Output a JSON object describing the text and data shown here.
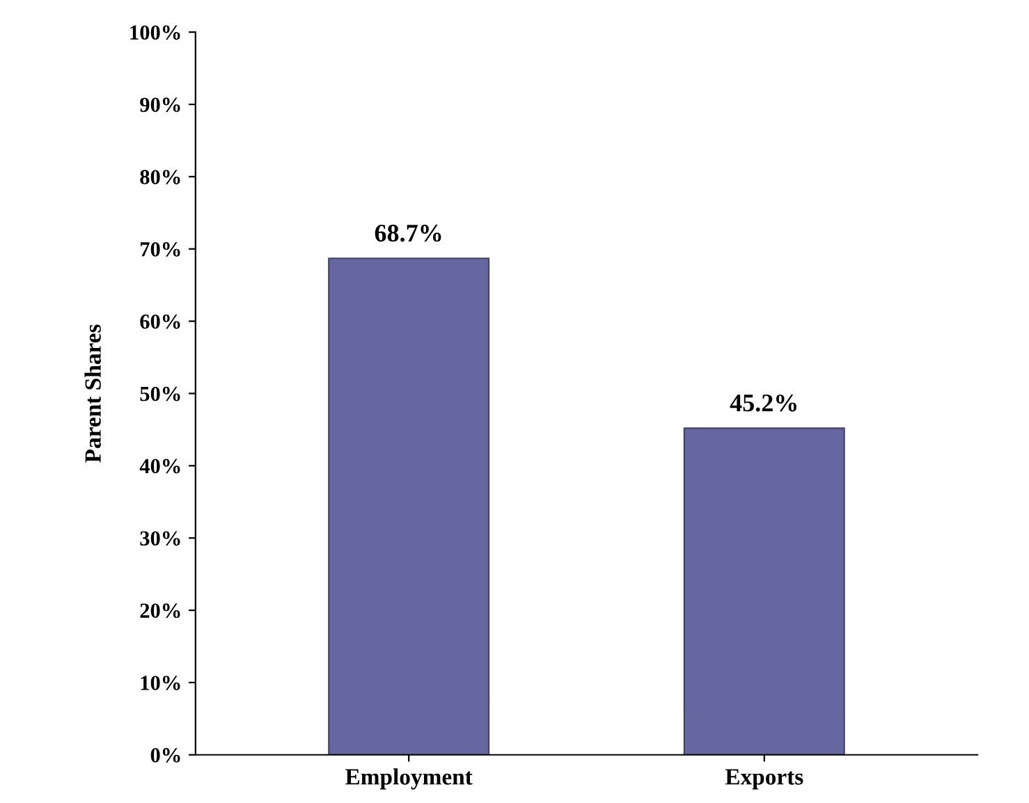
{
  "chart_data": {
    "type": "bar",
    "ylabel": "Parent Shares",
    "categories": [
      "Employment",
      "Exports"
    ],
    "values": [
      68.7,
      45.2
    ],
    "color": "#6666a0",
    "value_labels": [
      "68.7%",
      "45.2%"
    ],
    "ylim": [
      0,
      100
    ],
    "yticks": [
      {
        "value": 0,
        "label": "0%"
      },
      {
        "value": 10,
        "label": "10%"
      },
      {
        "value": 20,
        "label": "20%"
      },
      {
        "value": 30,
        "label": "30%"
      },
      {
        "value": 40,
        "label": "40%"
      },
      {
        "value": 50,
        "label": "50%"
      },
      {
        "value": 60,
        "label": "60%"
      },
      {
        "value": 70,
        "label": "70%"
      },
      {
        "value": 80,
        "label": "80%"
      },
      {
        "value": 90,
        "label": "90%"
      },
      {
        "value": 100,
        "label": "100%"
      }
    ],
    "grid": false,
    "legend": false
  }
}
